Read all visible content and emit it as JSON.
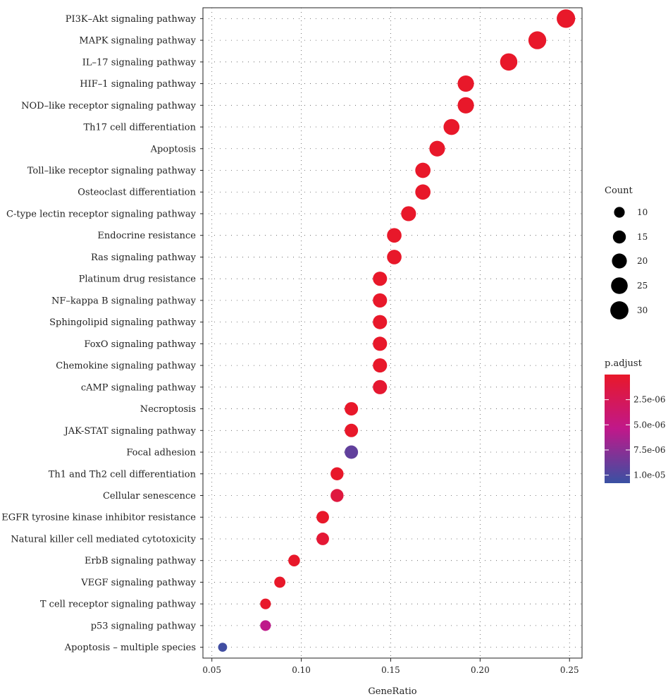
{
  "chart_data": {
    "type": "scatter",
    "xlabel": "GeneRatio",
    "ylabel": "",
    "xlim": [
      0.045,
      0.257
    ],
    "x_ticks": [
      0.05,
      0.1,
      0.15,
      0.2,
      0.25
    ],
    "x_tick_labels": [
      "0.05",
      "0.10",
      "0.15",
      "0.20",
      "0.25"
    ],
    "grid": true,
    "points": [
      {
        "label": "PI3K–Akt signaling pathway",
        "x": 0.248,
        "count": 31,
        "p_adjust": 0.0
      },
      {
        "label": "MAPK signaling pathway",
        "x": 0.232,
        "count": 29,
        "p_adjust": 0.0
      },
      {
        "label": "IL–17 signaling pathway",
        "x": 0.216,
        "count": 27,
        "p_adjust": 0.0
      },
      {
        "label": "HIF–1 signaling pathway",
        "x": 0.192,
        "count": 24,
        "p_adjust": 0.0
      },
      {
        "label": "NOD–like receptor signaling pathway",
        "x": 0.192,
        "count": 24,
        "p_adjust": 0.0
      },
      {
        "label": "Th17 cell differentiation",
        "x": 0.184,
        "count": 23,
        "p_adjust": 0.0
      },
      {
        "label": "Apoptosis",
        "x": 0.176,
        "count": 22,
        "p_adjust": 0.0
      },
      {
        "label": "Toll–like receptor signaling pathway",
        "x": 0.168,
        "count": 21,
        "p_adjust": 0.0
      },
      {
        "label": "Osteoclast differentiation",
        "x": 0.168,
        "count": 21,
        "p_adjust": 0.0
      },
      {
        "label": "C-type lectin receptor signaling pathway",
        "x": 0.16,
        "count": 20,
        "p_adjust": 0.0
      },
      {
        "label": "Endocrine resistance",
        "x": 0.152,
        "count": 19,
        "p_adjust": 0.0
      },
      {
        "label": "Ras signaling pathway",
        "x": 0.152,
        "count": 19,
        "p_adjust": 0.0
      },
      {
        "label": "Platinum drug resistance",
        "x": 0.144,
        "count": 18,
        "p_adjust": 0.0
      },
      {
        "label": "NF–kappa B signaling pathway",
        "x": 0.144,
        "count": 18,
        "p_adjust": 0.0
      },
      {
        "label": "Sphingolipid signaling pathway",
        "x": 0.144,
        "count": 18,
        "p_adjust": 0.0
      },
      {
        "label": "FoxO signaling pathway",
        "x": 0.144,
        "count": 18,
        "p_adjust": 0.0
      },
      {
        "label": "Chemokine signaling pathway",
        "x": 0.144,
        "count": 18,
        "p_adjust": 0.0
      },
      {
        "label": "cAMP signaling pathway",
        "x": 0.144,
        "count": 18,
        "p_adjust": 4e-07
      },
      {
        "label": "Necroptosis",
        "x": 0.128,
        "count": 16,
        "p_adjust": 0.0
      },
      {
        "label": "JAK-STAT signaling pathway",
        "x": 0.128,
        "count": 16,
        "p_adjust": 0.0
      },
      {
        "label": "Focal adhesion",
        "x": 0.128,
        "count": 16,
        "p_adjust": 9.2e-06
      },
      {
        "label": "Th1 and Th2 cell differentiation",
        "x": 0.12,
        "count": 15,
        "p_adjust": 0.0
      },
      {
        "label": "Cellular senescence",
        "x": 0.12,
        "count": 15,
        "p_adjust": 1.2e-06
      },
      {
        "label": "EGFR tyrosine kinase inhibitor resistance",
        "x": 0.112,
        "count": 14,
        "p_adjust": 0.0
      },
      {
        "label": "Natural killer cell mediated cytotoxicity",
        "x": 0.112,
        "count": 14,
        "p_adjust": 6e-07
      },
      {
        "label": "ErbB signaling pathway",
        "x": 0.096,
        "count": 12,
        "p_adjust": 0.0
      },
      {
        "label": "VEGF signaling pathway",
        "x": 0.088,
        "count": 11,
        "p_adjust": 0.0
      },
      {
        "label": "T cell receptor signaling pathway",
        "x": 0.08,
        "count": 10,
        "p_adjust": 0.0
      },
      {
        "label": "p53 signaling pathway",
        "x": 0.08,
        "count": 10,
        "p_adjust": 5.5e-06
      },
      {
        "label": "Apoptosis – multiple species",
        "x": 0.056,
        "count": 7,
        "p_adjust": 1.05e-05
      }
    ],
    "legend_count": {
      "title": "Count",
      "placement": "right",
      "values": [
        10,
        15,
        20,
        25,
        30
      ],
      "labels": [
        "10",
        "15",
        "20",
        "25",
        "30"
      ]
    },
    "legend_padjust": {
      "title": "p.adjust",
      "placement": "right",
      "range": [
        0.0,
        1.08e-05
      ],
      "ticks": [
        2.5e-06,
        5e-06,
        7.5e-06,
        1e-05
      ],
      "tick_labels": [
        "2.5e-06",
        "5.0e-06",
        "7.5e-06",
        "1.0e-05"
      ],
      "colors": {
        "low": "#e8182a",
        "mid": "#c0188a",
        "high": "#3951a3"
      }
    },
    "point_fill_color": "#000000"
  }
}
